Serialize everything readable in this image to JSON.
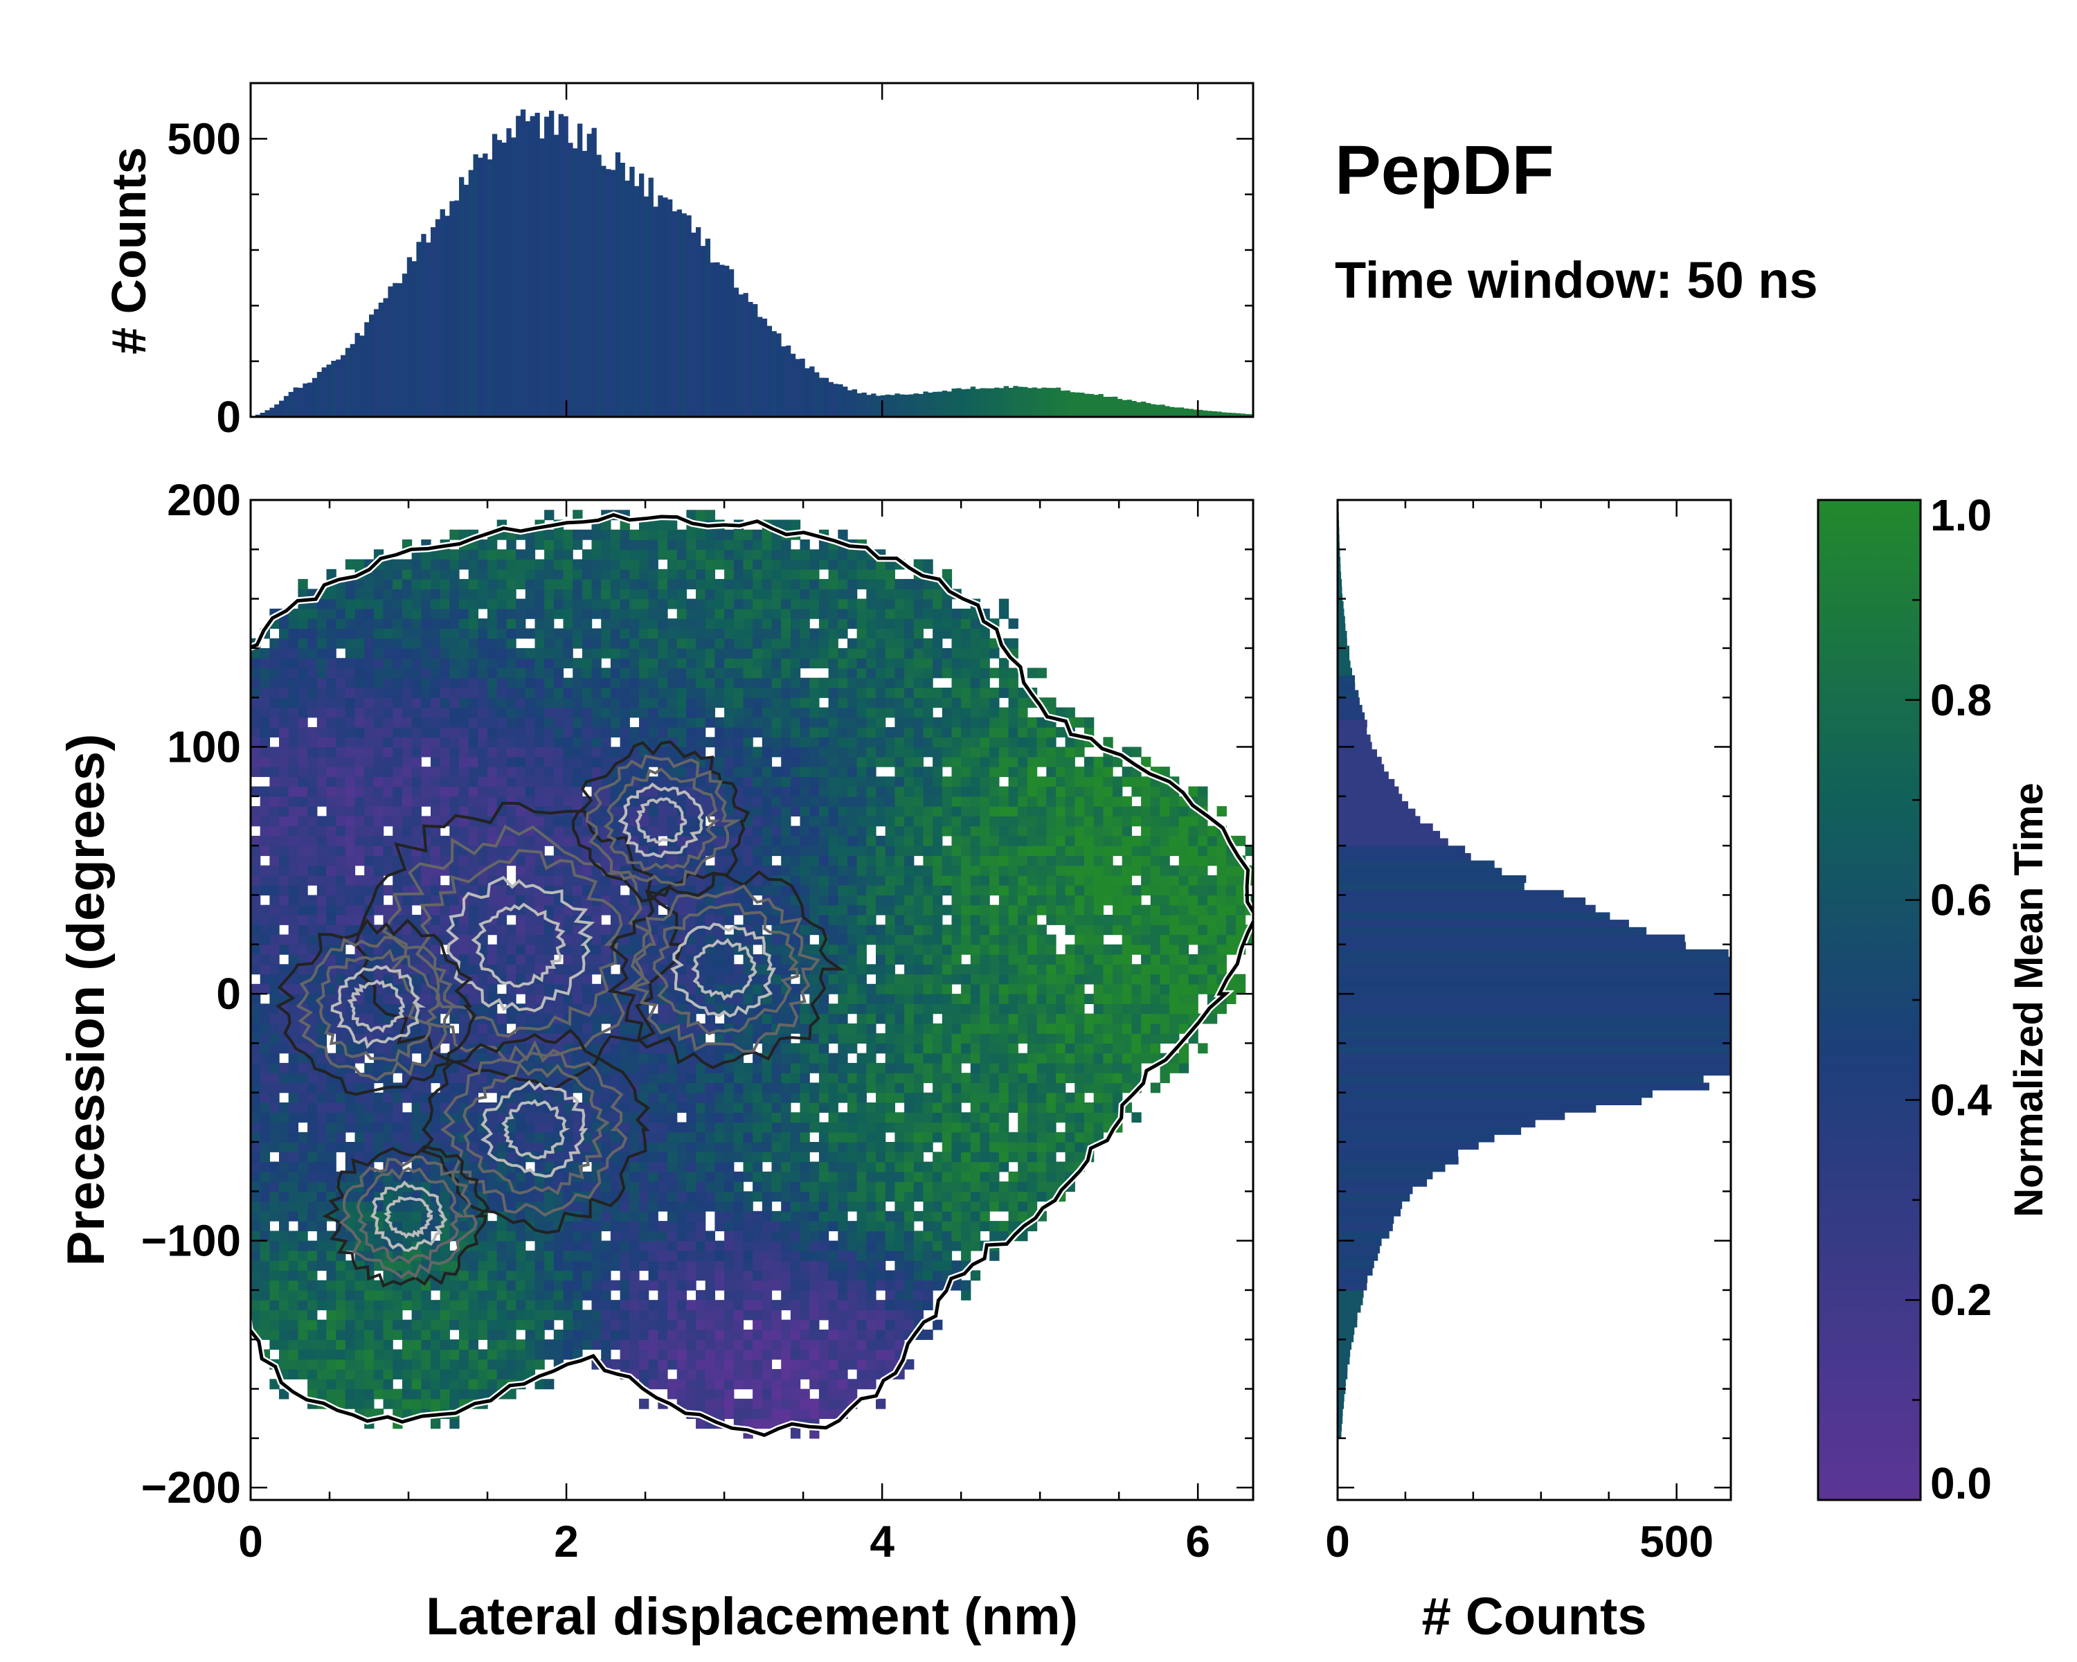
{
  "chart_data": {
    "type": "heatmap",
    "title": "PepDF",
    "subtitle": "Time window: 50 ns",
    "colors": {
      "purple": "#5c3596",
      "navy": "#1c3f7a",
      "teal": "#11605a",
      "green": "#23892d",
      "contour_outer": "#000000",
      "contour_dark": "#222222",
      "contour_mid": "#666666",
      "contour_light": "#bbbbbb"
    },
    "main_panel": {
      "xlabel": "Lateral displacement (nm)",
      "ylabel": "Precession (degrees)",
      "xlim": [
        0,
        6.35
      ],
      "ylim": [
        -205,
        200
      ],
      "xticks": [
        0,
        2,
        4,
        6
      ],
      "xtick_labels": [
        "0",
        "2",
        "4",
        "6"
      ],
      "yticks": [
        -200,
        -100,
        0,
        100,
        200
      ],
      "ytick_labels": [
        "−200",
        "−100",
        "0",
        "100",
        "200"
      ],
      "color_label": "Normalized Mean Time",
      "color_range": [
        0.0,
        1.0
      ],
      "regions": [
        {
          "name": "upper-teal-lobe",
          "cx": 2.6,
          "cy": 145,
          "rx": 1.9,
          "ry": 45,
          "value": 0.72
        },
        {
          "name": "upper-left-purple",
          "cx": 0.9,
          "cy": 85,
          "rx": 0.8,
          "ry": 35,
          "value": 0.12
        },
        {
          "name": "central-purple",
          "cx": 1.6,
          "cy": 50,
          "rx": 1.3,
          "ry": 60,
          "value": 0.18
        },
        {
          "name": "central-navy",
          "cx": 2.4,
          "cy": -10,
          "rx": 1.7,
          "ry": 80,
          "value": 0.45
        },
        {
          "name": "left-navy",
          "cx": 0.5,
          "cy": -10,
          "rx": 0.6,
          "ry": 60,
          "value": 0.42
        },
        {
          "name": "right-green-lobe",
          "cx": 5.2,
          "cy": 35,
          "rx": 1.1,
          "ry": 50,
          "value": 0.97
        },
        {
          "name": "mid-green",
          "cx": 4.2,
          "cy": -45,
          "rx": 0.9,
          "ry": 50,
          "value": 0.92
        },
        {
          "name": "lower-left-green",
          "cx": 0.9,
          "cy": -130,
          "rx": 0.8,
          "ry": 40,
          "value": 0.82
        },
        {
          "name": "lower-purple",
          "cx": 3.3,
          "cy": -140,
          "rx": 0.7,
          "ry": 35,
          "value": 0.08
        }
      ],
      "contour_levels": [
        0.05,
        0.2,
        0.4,
        0.6,
        0.8
      ]
    },
    "top_hist": {
      "ylabel": "# Counts",
      "ylim": [
        0,
        600
      ],
      "yticks": [
        0,
        500
      ],
      "ytick_labels": [
        "0",
        "500"
      ],
      "x_range": [
        0,
        6.35
      ],
      "bin_width": 0.03,
      "components": [
        {
          "name": "main-peak",
          "center": 1.8,
          "sigma": 0.7,
          "amplitude": 520
        },
        {
          "name": "shoulder",
          "center": 2.9,
          "sigma": 0.45,
          "amplitude": 150
        },
        {
          "name": "tail",
          "center": 4.8,
          "sigma": 0.7,
          "amplitude": 55
        }
      ]
    },
    "right_hist": {
      "xlabel": "# Counts",
      "xlim": [
        0,
        580
      ],
      "xticks": [
        0,
        500
      ],
      "xtick_labels": [
        "0",
        "500"
      ],
      "y_range": [
        -180,
        200
      ],
      "bin_width": 3,
      "components": [
        {
          "name": "upper-peak",
          "center": 0,
          "sigma": 30,
          "amplitude": 460
        },
        {
          "name": "lower-peak",
          "center": -20,
          "sigma": 20,
          "amplitude": 280
        },
        {
          "name": "broad",
          "center": -5,
          "sigma": 65,
          "amplitude": 220
        }
      ]
    },
    "colorbar": {
      "label": "Normalized Mean Time",
      "range": [
        0.0,
        1.0
      ],
      "ticks": [
        0.0,
        0.2,
        0.4,
        0.6,
        0.8,
        1.0
      ],
      "tick_labels": [
        "0.0",
        "0.2",
        "0.4",
        "0.6",
        "0.8",
        "1.0"
      ]
    }
  }
}
